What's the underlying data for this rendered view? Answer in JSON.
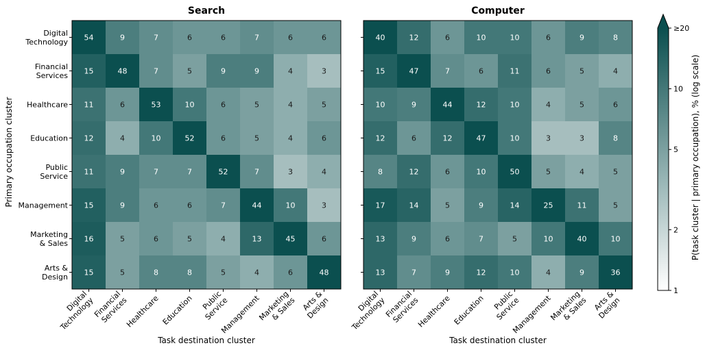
{
  "chart_data": {
    "type": "heatmap",
    "categories": [
      "Digital Technology",
      "Financial Services",
      "Healthcare",
      "Education",
      "Public Service",
      "Management",
      "Marketing & Sales",
      "Arts & Design"
    ],
    "category_lines": [
      [
        "Digital",
        "Technology"
      ],
      [
        "Financial",
        "Services"
      ],
      [
        "Healthcare"
      ],
      [
        "Education"
      ],
      [
        "Public",
        "Service"
      ],
      [
        "Management"
      ],
      [
        "Marketing",
        "& Sales"
      ],
      [
        "Arts &",
        "Design"
      ]
    ],
    "ylabel": "Primary occupation cluster",
    "panels": [
      {
        "title": "Search",
        "xlabel": "Task destination cluster",
        "values": [
          [
            54,
            9,
            7,
            6,
            6,
            7,
            6,
            6
          ],
          [
            15,
            48,
            7,
            5,
            9,
            9,
            4,
            3
          ],
          [
            11,
            6,
            53,
            10,
            6,
            5,
            4,
            5
          ],
          [
            12,
            4,
            10,
            52,
            6,
            5,
            4,
            6
          ],
          [
            11,
            9,
            7,
            7,
            52,
            7,
            3,
            4
          ],
          [
            15,
            9,
            6,
            6,
            7,
            44,
            10,
            3
          ],
          [
            16,
            5,
            6,
            5,
            4,
            13,
            45,
            6
          ],
          [
            15,
            5,
            8,
            8,
            5,
            4,
            6,
            48
          ]
        ]
      },
      {
        "title": "Computer",
        "xlabel": "Task destination cluster",
        "values": [
          [
            40,
            12,
            6,
            10,
            10,
            6,
            9,
            8
          ],
          [
            15,
            47,
            7,
            6,
            11,
            6,
            5,
            4
          ],
          [
            10,
            9,
            44,
            12,
            10,
            4,
            5,
            6
          ],
          [
            12,
            6,
            12,
            47,
            10,
            3,
            3,
            8
          ],
          [
            8,
            12,
            6,
            10,
            50,
            5,
            4,
            5
          ],
          [
            17,
            14,
            5,
            9,
            14,
            25,
            11,
            5
          ],
          [
            13,
            9,
            6,
            7,
            5,
            10,
            40,
            10
          ],
          [
            13,
            7,
            9,
            12,
            10,
            4,
            9,
            36
          ]
        ]
      }
    ],
    "colorbar": {
      "label": "P(task cluster | primary occupation), %  (log scale)",
      "scale": "log",
      "range": [
        1,
        20
      ],
      "ticks": [
        1,
        2,
        5,
        10,
        20
      ],
      "tick_labels": [
        "1",
        "2",
        "5",
        "10",
        "≥20"
      ],
      "extend": "max",
      "color_low": "#ffffff",
      "color_high": "#0b4f4f"
    }
  }
}
